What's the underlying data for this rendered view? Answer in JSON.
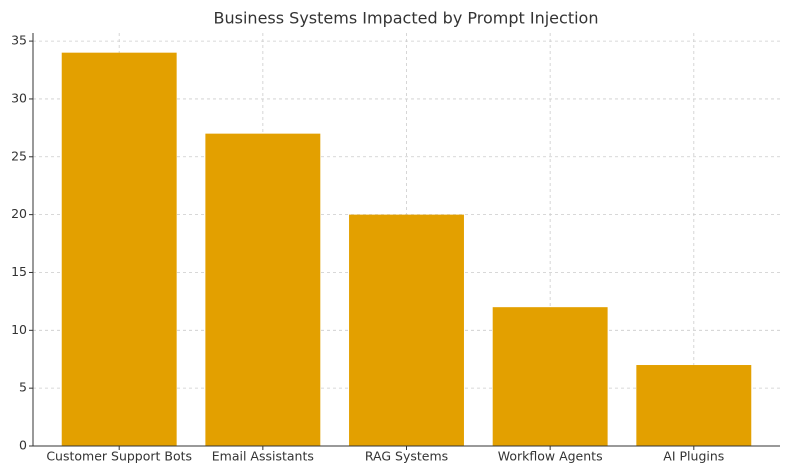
{
  "chart_data": {
    "type": "bar",
    "title": "Business Systems Impacted by Prompt Injection",
    "categories": [
      "Customer Support Bots",
      "Email Assistants",
      "RAG Systems",
      "Workflow Agents",
      "AI Plugins"
    ],
    "values": [
      34,
      27,
      20,
      12,
      7
    ],
    "color": "#e3a000",
    "ylim": [
      0,
      35.7
    ],
    "yticks": [
      0,
      5,
      10,
      15,
      20,
      25,
      30,
      35
    ],
    "grid": true
  }
}
